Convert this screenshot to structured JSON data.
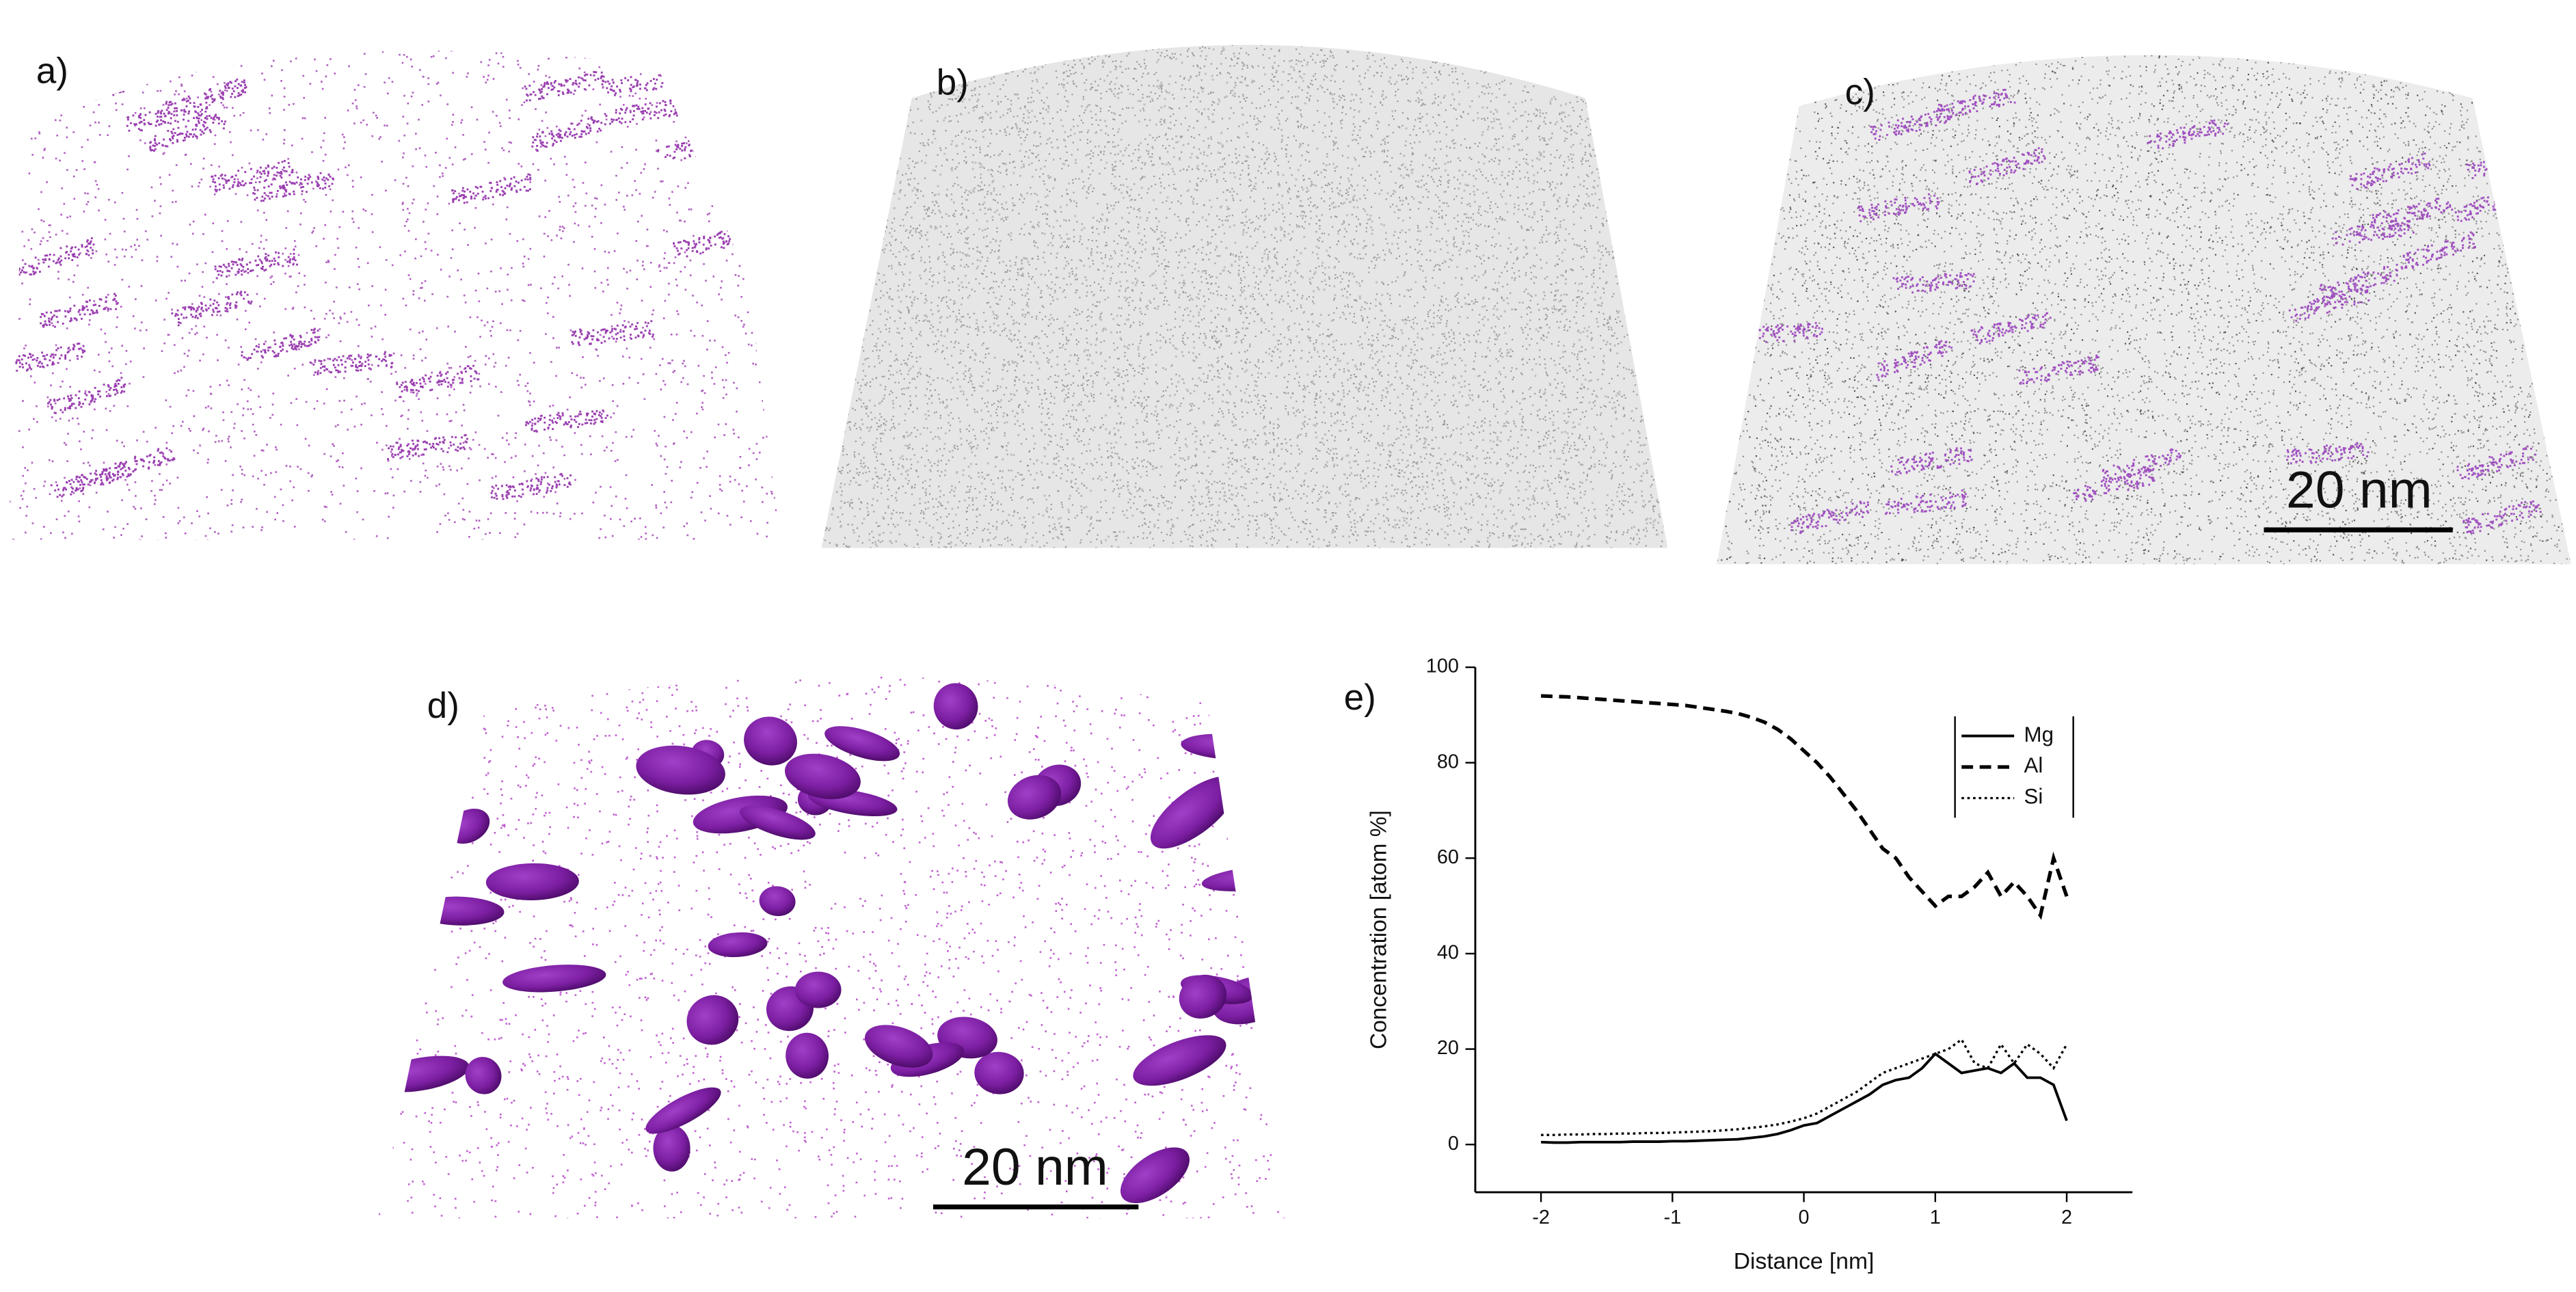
{
  "panels": [
    {
      "label": "a)"
    },
    {
      "label": "b)"
    },
    {
      "label": "c)",
      "scale_bar": "20 nm"
    },
    {
      "label": "d)",
      "scale_bar": "20 nm"
    },
    {
      "label": "e)"
    }
  ],
  "chart_data": {
    "type": "line",
    "x_label": "Distance [nm]",
    "y_label": "Concentration [atom %]",
    "x": [
      -2.0,
      -1.9,
      -1.8,
      -1.7,
      -1.6,
      -1.5,
      -1.4,
      -1.3,
      -1.2,
      -1.1,
      -1.0,
      -0.9,
      -0.8,
      -0.7,
      -0.6,
      -0.5,
      -0.4,
      -0.3,
      -0.2,
      -0.1,
      0.0,
      0.1,
      0.2,
      0.3,
      0.4,
      0.5,
      0.6,
      0.7,
      0.8,
      0.9,
      1.0,
      1.1,
      1.2,
      1.3,
      1.4,
      1.5,
      1.6,
      1.7,
      1.8,
      1.9,
      2.0
    ],
    "series": [
      {
        "name": "Mg",
        "color": "#000000",
        "dash": "solid",
        "values": [
          0.5,
          0.4,
          0.4,
          0.5,
          0.5,
          0.5,
          0.5,
          0.6,
          0.6,
          0.6,
          0.7,
          0.7,
          0.8,
          0.9,
          1.0,
          1.1,
          1.4,
          1.7,
          2.2,
          3.0,
          4.0,
          4.5,
          6.0,
          7.5,
          9.0,
          10.5,
          12.5,
          13.5,
          14.0,
          16.0,
          19.0,
          17.0,
          15.0,
          15.5,
          16.0,
          15.0,
          17.0,
          14.0,
          14.0,
          12.5,
          5.0
        ]
      },
      {
        "name": "Al",
        "color": "#000000",
        "dash": "dashed",
        "values": [
          94.0,
          93.9,
          93.8,
          93.6,
          93.4,
          93.2,
          93.0,
          92.8,
          92.6,
          92.4,
          92.2,
          92.0,
          91.6,
          91.2,
          90.8,
          90.3,
          89.5,
          88.5,
          87.0,
          85.0,
          82.5,
          80.0,
          77.0,
          73.5,
          70.0,
          66.0,
          62.0,
          60.0,
          56.0,
          53.0,
          50.0,
          52.0,
          52.0,
          54.0,
          57.0,
          52.0,
          55.0,
          52.0,
          48.0,
          60.0,
          52.0
        ]
      },
      {
        "name": "Si",
        "color": "#000000",
        "dash": "dotted",
        "values": [
          2.0,
          2.0,
          2.1,
          2.1,
          2.2,
          2.2,
          2.3,
          2.3,
          2.4,
          2.4,
          2.5,
          2.6,
          2.7,
          2.8,
          3.0,
          3.2,
          3.5,
          3.8,
          4.2,
          4.8,
          5.5,
          6.5,
          8.0,
          9.5,
          11.0,
          13.0,
          15.0,
          16.0,
          17.0,
          18.0,
          19.0,
          20.0,
          22.0,
          17.0,
          16.0,
          21.0,
          17.0,
          21.0,
          19.0,
          16.0,
          21.0
        ]
      }
    ],
    "xlim": [
      -2.5,
      2.5
    ],
    "xticks": [
      -2,
      -1,
      0,
      1,
      2
    ],
    "ylim": [
      -10,
      100
    ],
    "yticks": [
      0,
      20,
      40,
      60,
      80,
      100
    ],
    "grid": false,
    "legend": "upper right"
  }
}
